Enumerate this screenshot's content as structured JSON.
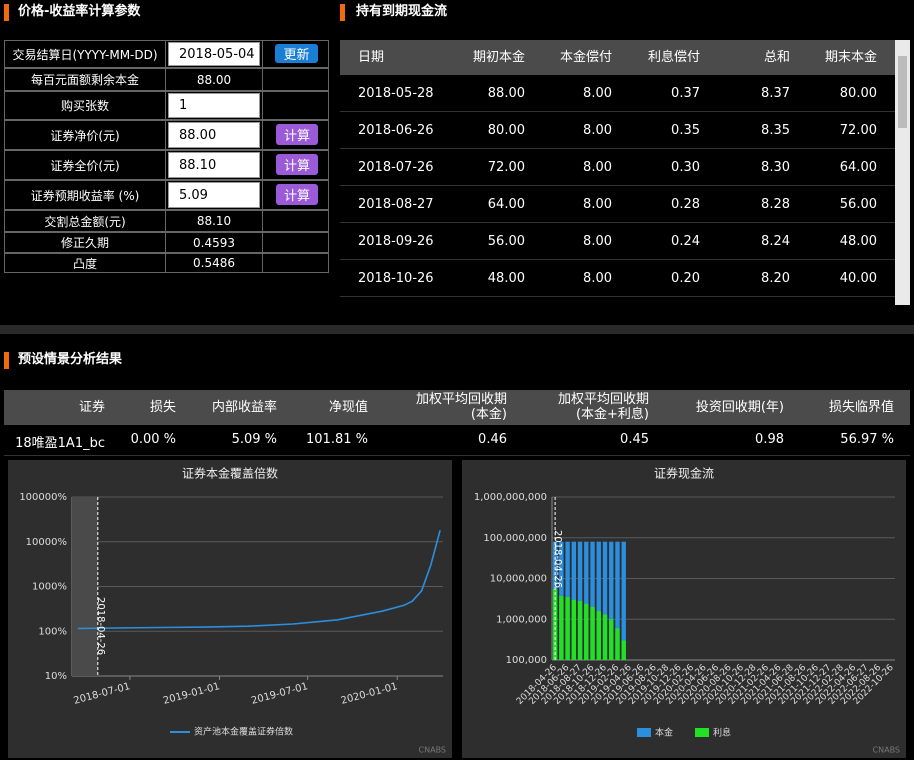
{
  "params_panel": {
    "title": "价格-收益率计算参数",
    "rows": [
      {
        "label": "交易结算日(YYYY-MM-DD)",
        "input": "2018-05-04",
        "button": "更新"
      },
      {
        "label": "每百元面额剩余本金",
        "value": "88.00"
      },
      {
        "label": "购买张数",
        "input": "1"
      },
      {
        "label": "证券净价(元)",
        "input": "88.00",
        "button": "计算"
      },
      {
        "label": "证券全价(元)",
        "input": "88.10",
        "button": "计算"
      },
      {
        "label": "证券预期收益率 (%)",
        "input": "5.09",
        "button": "计算"
      },
      {
        "label": "交割总金额(元)",
        "value": "88.10"
      },
      {
        "label": "修正久期",
        "value": "0.4593"
      },
      {
        "label": "凸度",
        "value": "0.5486"
      }
    ]
  },
  "cashflow_panel": {
    "title": "持有到期现金流",
    "headers": [
      "日期",
      "期初本金",
      "本金偿付",
      "利息偿付",
      "总和",
      "期末本金"
    ],
    "rows": [
      [
        "2018-05-28",
        "88.00",
        "8.00",
        "0.37",
        "8.37",
        "80.00"
      ],
      [
        "2018-06-26",
        "80.00",
        "8.00",
        "0.35",
        "8.35",
        "72.00"
      ],
      [
        "2018-07-26",
        "72.00",
        "8.00",
        "0.30",
        "8.30",
        "64.00"
      ],
      [
        "2018-08-27",
        "64.00",
        "8.00",
        "0.28",
        "8.28",
        "56.00"
      ],
      [
        "2018-09-26",
        "56.00",
        "8.00",
        "0.24",
        "8.24",
        "48.00"
      ],
      [
        "2018-10-26",
        "48.00",
        "8.00",
        "0.20",
        "8.20",
        "40.00"
      ]
    ]
  },
  "scenario_panel": {
    "title": "预设情景分析结果",
    "headers": [
      "证券",
      "损失",
      "内部收益率",
      "净现值",
      "加权平均回收期\n(本金)",
      "加权平均回收期\n(本金+利息)",
      "投资回收期(年)",
      "损失临界值"
    ],
    "rows": [
      [
        "18唯盈1A1_bc",
        "0.00 %",
        "5.09 %",
        "101.81 %",
        "0.46",
        "0.45",
        "0.98",
        "56.97 %"
      ]
    ]
  },
  "watermark": "CNABS",
  "chart_data": [
    {
      "type": "line",
      "title": "证券本金覆盖倍数",
      "log_scale": true,
      "grid": true,
      "annotation": "2018-04-26",
      "x": [
        "2018-03-16",
        "2018-06-01",
        "2018-09-01",
        "2018-12-01",
        "2019-03-01",
        "2019-06-01",
        "2019-09-01",
        "2019-12-01",
        "2020-01-15",
        "2020-02-01",
        "2020-02-20",
        "2020-03-10",
        "2020-03-29"
      ],
      "xlim": [
        "2018-03-04",
        "2020-04-04"
      ],
      "xticks": [
        "2018-07-01",
        "2019-01-01",
        "2019-07-01",
        "2020-01-01"
      ],
      "ylim": [
        10,
        100000
      ],
      "yticks": [
        {
          "value": 10,
          "label": "10%"
        },
        {
          "value": 100,
          "label": "100%"
        },
        {
          "value": 1000,
          "label": "1000%"
        },
        {
          "value": 10000,
          "label": "10000%"
        },
        {
          "value": 100000,
          "label": "100000%"
        }
      ],
      "series": [
        {
          "name": "资产池本金覆盖证券倍数",
          "color": "#2b8fe0",
          "values": [
            115,
            118,
            121,
            124,
            130,
            145,
            180,
            280,
            380,
            470,
            800,
            3000,
            18000
          ]
        }
      ]
    },
    {
      "type": "bar",
      "title": "证券现金流",
      "log_scale": true,
      "grid": true,
      "annotation": "2018-04-26",
      "categories": [
        "2018-04-26",
        null,
        "2018-06-26",
        null,
        "2018-08-27",
        null,
        "2018-10-26",
        null,
        "2018-12-26",
        null,
        "2019-02-26",
        null,
        "2019-04-26",
        null,
        "2019-06-26",
        null,
        "2019-08-26",
        null,
        "2019-10-28",
        null,
        "2019-12-26",
        null,
        "2020-02-26",
        null,
        "2020-04-26",
        null,
        "2020-06-26",
        null,
        "2020-08-26",
        null,
        "2020-10-26",
        null,
        "2020-12-28",
        null,
        "2021-02-26",
        null,
        "2021-04-26",
        null,
        "2021-06-28",
        null,
        "2021-08-26",
        null,
        "2021-10-26",
        null,
        "2021-12-27",
        null,
        "2022-02-28",
        null,
        "2022-04-26",
        null,
        "2022-06-27",
        null,
        "2022-08-26",
        null,
        "2022-10-26"
      ],
      "ylim": [
        100000,
        1000000000
      ],
      "yticks": [
        {
          "value": 100000,
          "label": "100,000"
        },
        {
          "value": 1000000,
          "label": "1,000,000"
        },
        {
          "value": 10000000,
          "label": "10,000,000"
        },
        {
          "value": 100000000,
          "label": "100,000,000"
        },
        {
          "value": 1000000000,
          "label": "1,000,000,000"
        }
      ],
      "series": [
        {
          "name": "本金",
          "color": "#2b8fe0",
          "values": [
            80000000,
            80000000,
            80000000,
            80000000,
            80000000,
            80000000,
            80000000,
            80000000,
            80000000,
            80000000,
            80000000,
            80000000,
            null,
            null,
            null,
            null,
            null,
            null,
            null,
            null,
            null,
            null,
            null,
            null,
            null,
            null,
            null,
            null,
            null,
            null,
            null,
            null,
            null,
            null,
            null,
            null,
            null,
            null,
            null,
            null,
            null,
            null,
            null,
            null,
            null,
            null,
            null,
            null,
            null,
            null,
            null,
            null,
            null,
            null,
            null
          ]
        },
        {
          "name": "利息",
          "color": "#22e022",
          "values": [
            5500000,
            3700000,
            3500000,
            3000000,
            2800000,
            2400000,
            2000000,
            1600000,
            1300000,
            1000000,
            600000,
            300000,
            null,
            null,
            null,
            null,
            null,
            null,
            null,
            null,
            null,
            null,
            null,
            null,
            null,
            null,
            null,
            null,
            null,
            null,
            null,
            null,
            null,
            null,
            null,
            null,
            null,
            null,
            null,
            null,
            null,
            null,
            null,
            null,
            null,
            null,
            null,
            null,
            null,
            null,
            null,
            null,
            null,
            null,
            null
          ]
        }
      ]
    }
  ]
}
